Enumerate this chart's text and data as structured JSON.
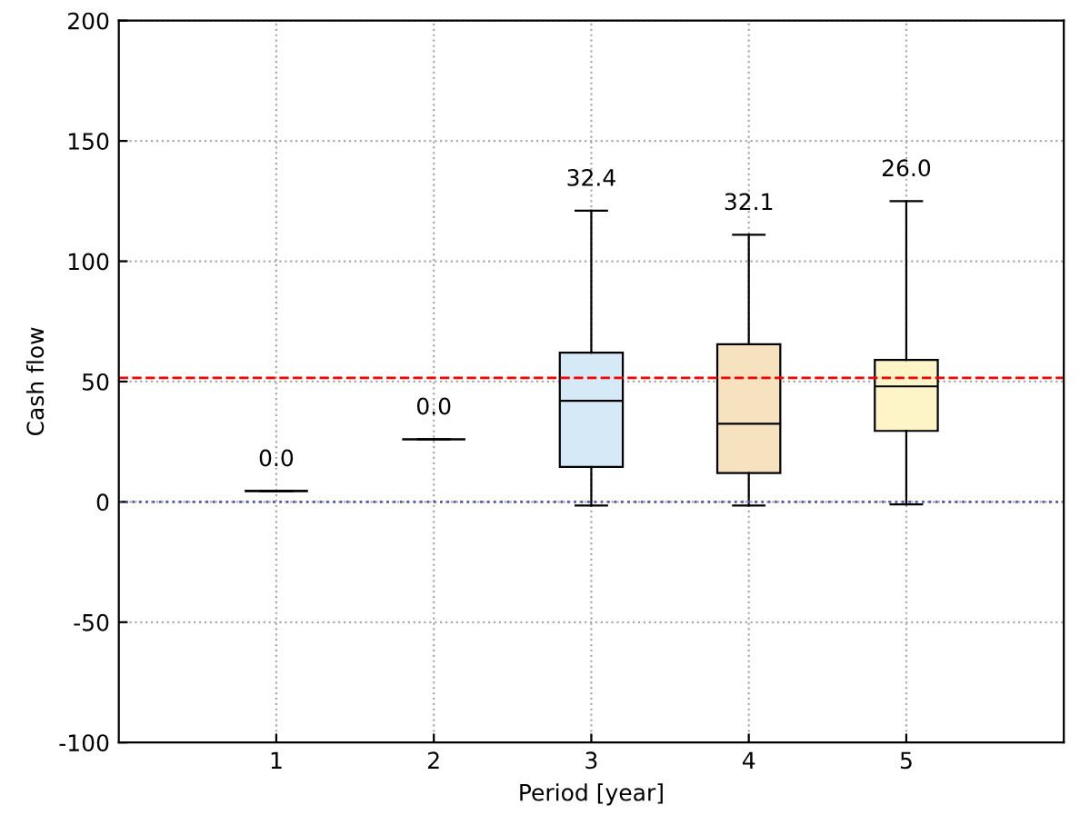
{
  "chart_data": {
    "type": "box",
    "xlabel": "Period [year]",
    "ylabel": "Cash flow",
    "categories": [
      "1",
      "2",
      "3",
      "4",
      "5"
    ],
    "boxes": [
      {
        "low": 4.5,
        "q1": 4.5,
        "median": 4.5,
        "q3": 4.5,
        "high": 4.5
      },
      {
        "low": 26,
        "q1": 26,
        "median": 26,
        "q3": 26,
        "high": 26
      },
      {
        "low": -1.5,
        "q1": 14.5,
        "median": 42,
        "q3": 62,
        "high": 121
      },
      {
        "low": -1.5,
        "q1": 12,
        "median": 32.5,
        "q3": 65.5,
        "high": 111
      },
      {
        "low": -1,
        "q1": 29.5,
        "median": 48,
        "q3": 59,
        "high": 125
      }
    ],
    "colors": [
      "#000000",
      "#000000",
      "#d5e9f7",
      "#f7e2bf",
      "#fdf4c8"
    ],
    "ylim": [
      -100,
      200
    ],
    "yticks": [
      -100,
      -50,
      0,
      50,
      100,
      150,
      200
    ],
    "ref_lines": [
      {
        "axis": "y",
        "value": 51.5,
        "color": "#ff0000",
        "line_style": "dashed"
      },
      {
        "axis": "y",
        "value": 0,
        "color": "#5555aa",
        "line_style": "dotted"
      }
    ],
    "annotations": [
      "0.0",
      "0.0",
      "32.4",
      "32.1",
      "26.0"
    ],
    "grid": true
  }
}
